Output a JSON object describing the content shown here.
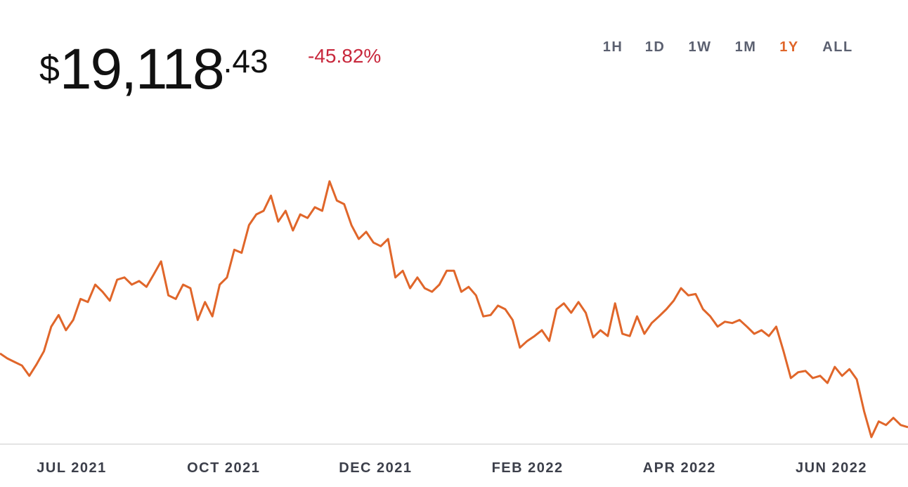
{
  "price": {
    "symbol": "$",
    "integer": "19,118",
    "fraction": ".43"
  },
  "change": "-45.82%",
  "ranges": [
    "1H",
    "1D",
    "1W",
    "1M",
    "1Y",
    "ALL"
  ],
  "active_range": "1Y",
  "chart_data": {
    "type": "line",
    "color": "#e0662a",
    "x_labels": [
      "JUL 2021",
      "OCT 2021",
      "DEC 2021",
      "FEB 2022",
      "APR 2022",
      "JUN 2022"
    ],
    "values": [
      35600,
      34500,
      33700,
      32900,
      30600,
      33200,
      36100,
      41600,
      44200,
      40800,
      43100,
      47800,
      47100,
      51000,
      49400,
      47400,
      52100,
      52600,
      51000,
      51800,
      50500,
      53300,
      56200,
      48600,
      47800,
      51000,
      50200,
      43100,
      47100,
      43900,
      51000,
      52600,
      58800,
      58100,
      64300,
      66700,
      67500,
      70900,
      65100,
      67500,
      63100,
      66700,
      65900,
      68300,
      67500,
      74100,
      69800,
      69000,
      64300,
      61200,
      62800,
      60400,
      59600,
      61200,
      52600,
      54100,
      50200,
      52600,
      50200,
      49400,
      51000,
      54100,
      54100,
      49400,
      50500,
      48600,
      43900,
      44200,
      46300,
      45500,
      43100,
      36900,
      38400,
      39500,
      40800,
      38400,
      45500,
      46800,
      44700,
      47100,
      44700,
      39200,
      40800,
      39500,
      46800,
      40000,
      39500,
      43900,
      40000,
      42400,
      43900,
      45500,
      47400,
      50200,
      48600,
      48900,
      45500,
      43900,
      41600,
      42700,
      42400,
      43100,
      41600,
      40000,
      40800,
      39500,
      41600,
      36100,
      30100,
      31400,
      31700,
      30100,
      30600,
      29000,
      32600,
      30600,
      32100,
      29800,
      22700,
      16900,
      20400,
      19600,
      21200,
      19600,
      19118.43
    ]
  }
}
